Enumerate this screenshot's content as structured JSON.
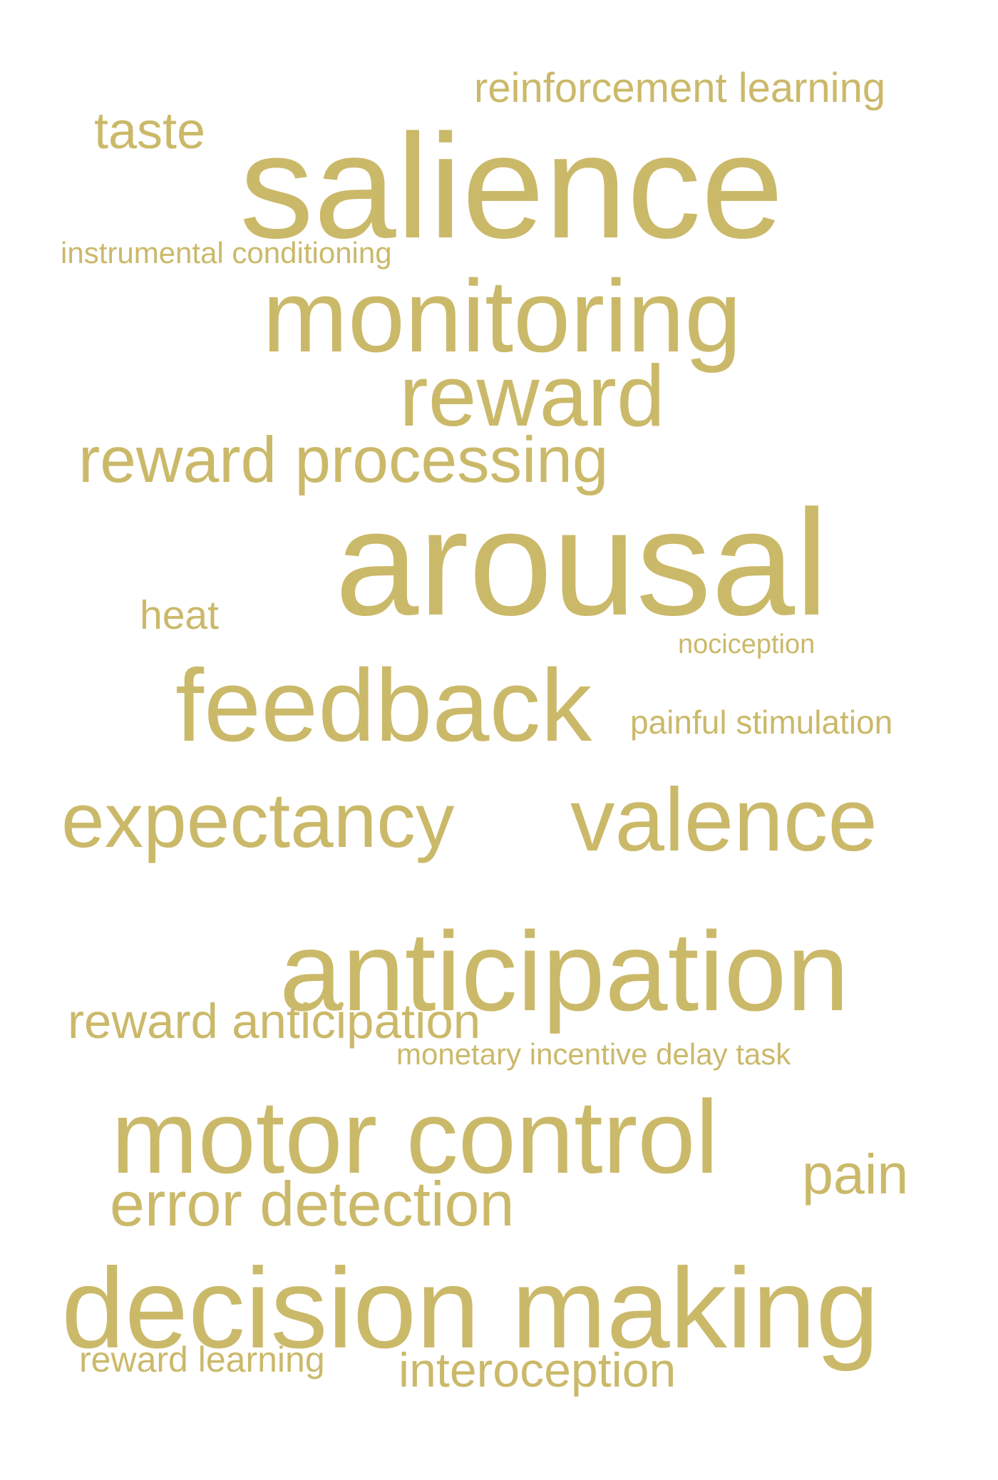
{
  "cloud": {
    "color": "#cbb96a",
    "words": {
      "reinforcement_learning": "reinforcement learning",
      "taste": "taste",
      "salience": "salience",
      "instrumental_conditioning": "instrumental conditioning",
      "monitoring": "monitoring",
      "reward": "reward",
      "reward_processing": "reward processing",
      "arousal": "arousal",
      "heat": "heat",
      "nociception": "nociception",
      "feedback": "feedback",
      "painful_stimulation": "painful stimulation",
      "expectancy": "expectancy",
      "valence": "valence",
      "anticipation": "anticipation",
      "reward_anticipation": "reward anticipation",
      "monetary_incentive_delay_task": "monetary incentive delay task",
      "motor_control": "motor control",
      "pain": "pain",
      "error_detection": "error detection",
      "decision_making": "decision making",
      "reward_learning": "reward learning",
      "interoception": "interoception"
    }
  }
}
